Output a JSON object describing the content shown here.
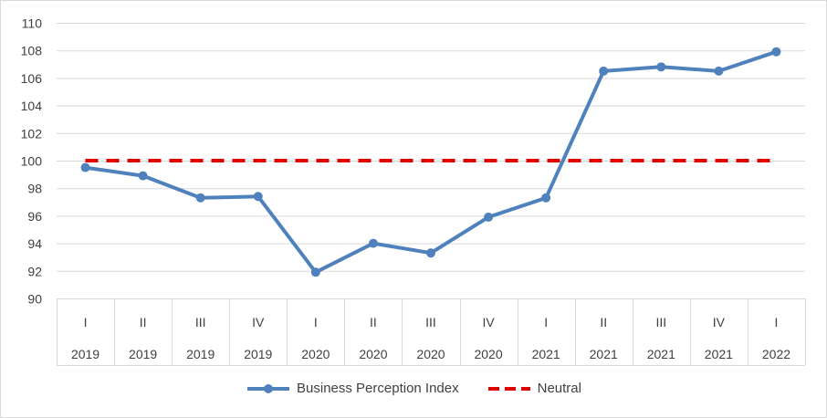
{
  "chart_data": {
    "type": "line",
    "title": "",
    "xlabel": "",
    "ylabel": "",
    "ylim": [
      90,
      110
    ],
    "yticks": [
      90,
      92,
      94,
      96,
      98,
      100,
      102,
      104,
      106,
      108,
      110
    ],
    "categories": [
      {
        "quarter": "I",
        "year": "2019"
      },
      {
        "quarter": "II",
        "year": "2019"
      },
      {
        "quarter": "III",
        "year": "2019"
      },
      {
        "quarter": "IV",
        "year": "2019"
      },
      {
        "quarter": "I",
        "year": "2020"
      },
      {
        "quarter": "II",
        "year": "2020"
      },
      {
        "quarter": "III",
        "year": "2020"
      },
      {
        "quarter": "IV",
        "year": "2020"
      },
      {
        "quarter": "I",
        "year": "2021"
      },
      {
        "quarter": "II",
        "year": "2021"
      },
      {
        "quarter": "III",
        "year": "2021"
      },
      {
        "quarter": "IV",
        "year": "2021"
      },
      {
        "quarter": "I",
        "year": "2022"
      }
    ],
    "series": [
      {
        "name": "Business Perception Index",
        "color": "#4f81bd",
        "style": "solid-markers",
        "values": [
          99.5,
          98.9,
          97.3,
          97.4,
          91.9,
          94.0,
          93.3,
          95.9,
          97.3,
          106.5,
          106.8,
          106.5,
          107.9
        ]
      },
      {
        "name": "Neutral",
        "color": "#e00000",
        "style": "dashed",
        "values": [
          100,
          100,
          100,
          100,
          100,
          100,
          100,
          100,
          100,
          100,
          100,
          100,
          100
        ]
      }
    ],
    "grid": true,
    "legend_position": "bottom"
  }
}
